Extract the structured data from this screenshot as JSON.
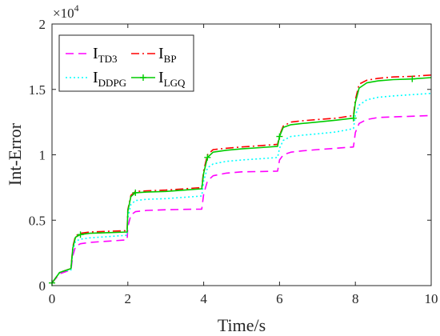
{
  "chart_data": {
    "type": "line",
    "title": "",
    "xlabel": "Time/s",
    "ylabel": "Int-Error",
    "xlim": [
      0,
      10
    ],
    "ylim": [
      0,
      2
    ],
    "xticks": [
      0,
      2,
      4,
      6,
      8,
      10
    ],
    "xtick_labels": [
      "0",
      "2",
      "4",
      "6",
      "8",
      "10"
    ],
    "yticks": [
      0,
      0.5,
      1,
      1.5,
      2
    ],
    "ytick_labels": [
      "0",
      "0.5",
      "1",
      "1.5",
      "2"
    ],
    "y_multiplier": "×10",
    "y_multiplier_exponent": "4",
    "grid": false,
    "legend_position": "top-left",
    "series": [
      {
        "name": "I",
        "subscript": "TD3",
        "color": "#ff00ff",
        "dash": "dashed",
        "marker": "none",
        "x": [
          0,
          0.2,
          0.3,
          0.5,
          0.55,
          0.62,
          0.75,
          1.0,
          1.5,
          1.98,
          2.0,
          2.08,
          2.2,
          2.5,
          3.0,
          3.5,
          3.95,
          4.0,
          4.1,
          4.25,
          4.6,
          5.0,
          5.5,
          5.95,
          6.0,
          6.1,
          6.3,
          6.6,
          7.0,
          7.5,
          7.95,
          8.0,
          8.1,
          8.3,
          8.6,
          9.0,
          9.5,
          10.0
        ],
        "values": [
          0.02,
          0.09,
          0.1,
          0.12,
          0.23,
          0.3,
          0.32,
          0.33,
          0.34,
          0.35,
          0.45,
          0.54,
          0.565,
          0.575,
          0.58,
          0.583,
          0.585,
          0.7,
          0.8,
          0.84,
          0.86,
          0.87,
          0.872,
          0.875,
          0.96,
          1.0,
          1.02,
          1.03,
          1.04,
          1.05,
          1.06,
          1.17,
          1.24,
          1.27,
          1.285,
          1.29,
          1.295,
          1.3
        ]
      },
      {
        "name": "I",
        "subscript": "BP",
        "color": "#ff0000",
        "dash": "dashdot",
        "marker": "none",
        "x": [
          0,
          0.2,
          0.3,
          0.5,
          0.55,
          0.62,
          0.75,
          1.0,
          1.5,
          1.98,
          2.0,
          2.08,
          2.2,
          2.5,
          3.0,
          3.5,
          3.95,
          4.0,
          4.1,
          4.25,
          4.6,
          5.0,
          5.5,
          5.95,
          6.0,
          6.1,
          6.3,
          6.6,
          7.0,
          7.5,
          7.95,
          8.0,
          8.1,
          8.3,
          8.6,
          9.0,
          9.5,
          10.0
        ],
        "values": [
          0.02,
          0.1,
          0.11,
          0.13,
          0.3,
          0.38,
          0.4,
          0.41,
          0.415,
          0.42,
          0.58,
          0.69,
          0.72,
          0.725,
          0.73,
          0.74,
          0.75,
          0.88,
          1.0,
          1.04,
          1.05,
          1.06,
          1.07,
          1.08,
          1.15,
          1.22,
          1.25,
          1.26,
          1.27,
          1.28,
          1.3,
          1.42,
          1.54,
          1.57,
          1.585,
          1.595,
          1.6,
          1.61
        ]
      },
      {
        "name": "I",
        "subscript": "DDPG",
        "color": "#00ffff",
        "dash": "dotted",
        "marker": "none",
        "x": [
          0,
          0.2,
          0.3,
          0.5,
          0.55,
          0.62,
          0.75,
          1.0,
          1.5,
          1.98,
          2.0,
          2.08,
          2.2,
          2.5,
          3.0,
          3.5,
          3.95,
          4.0,
          4.1,
          4.25,
          4.6,
          5.0,
          5.5,
          5.95,
          6.0,
          6.1,
          6.3,
          6.6,
          7.0,
          7.5,
          7.95,
          8.0,
          8.1,
          8.3,
          8.6,
          9.0,
          9.5,
          10.0
        ],
        "values": [
          0.02,
          0.1,
          0.11,
          0.12,
          0.27,
          0.34,
          0.355,
          0.365,
          0.375,
          0.385,
          0.52,
          0.62,
          0.65,
          0.66,
          0.665,
          0.675,
          0.685,
          0.8,
          0.9,
          0.93,
          0.95,
          0.96,
          0.97,
          0.98,
          1.05,
          1.11,
          1.14,
          1.15,
          1.16,
          1.175,
          1.2,
          1.3,
          1.38,
          1.42,
          1.44,
          1.45,
          1.46,
          1.47
        ]
      },
      {
        "name": "I",
        "subscript": "LGQ",
        "color": "#00cc00",
        "dash": "solid",
        "marker": "plus",
        "x": [
          0,
          0.2,
          0.3,
          0.5,
          0.55,
          0.62,
          0.75,
          1.0,
          1.5,
          1.98,
          2.0,
          2.08,
          2.2,
          2.5,
          3.0,
          3.5,
          3.95,
          4.0,
          4.1,
          4.25,
          4.6,
          5.0,
          5.5,
          5.95,
          6.0,
          6.1,
          6.3,
          6.6,
          7.0,
          7.5,
          7.95,
          8.0,
          8.1,
          8.3,
          8.6,
          9.0,
          9.5,
          10.0
        ],
        "values": [
          0.02,
          0.1,
          0.11,
          0.13,
          0.29,
          0.37,
          0.39,
          0.4,
          0.405,
          0.41,
          0.57,
          0.68,
          0.71,
          0.715,
          0.72,
          0.73,
          0.74,
          0.86,
          0.98,
          1.02,
          1.035,
          1.045,
          1.055,
          1.065,
          1.14,
          1.21,
          1.23,
          1.24,
          1.25,
          1.265,
          1.28,
          1.4,
          1.51,
          1.55,
          1.565,
          1.575,
          1.58,
          1.59
        ]
      }
    ]
  }
}
